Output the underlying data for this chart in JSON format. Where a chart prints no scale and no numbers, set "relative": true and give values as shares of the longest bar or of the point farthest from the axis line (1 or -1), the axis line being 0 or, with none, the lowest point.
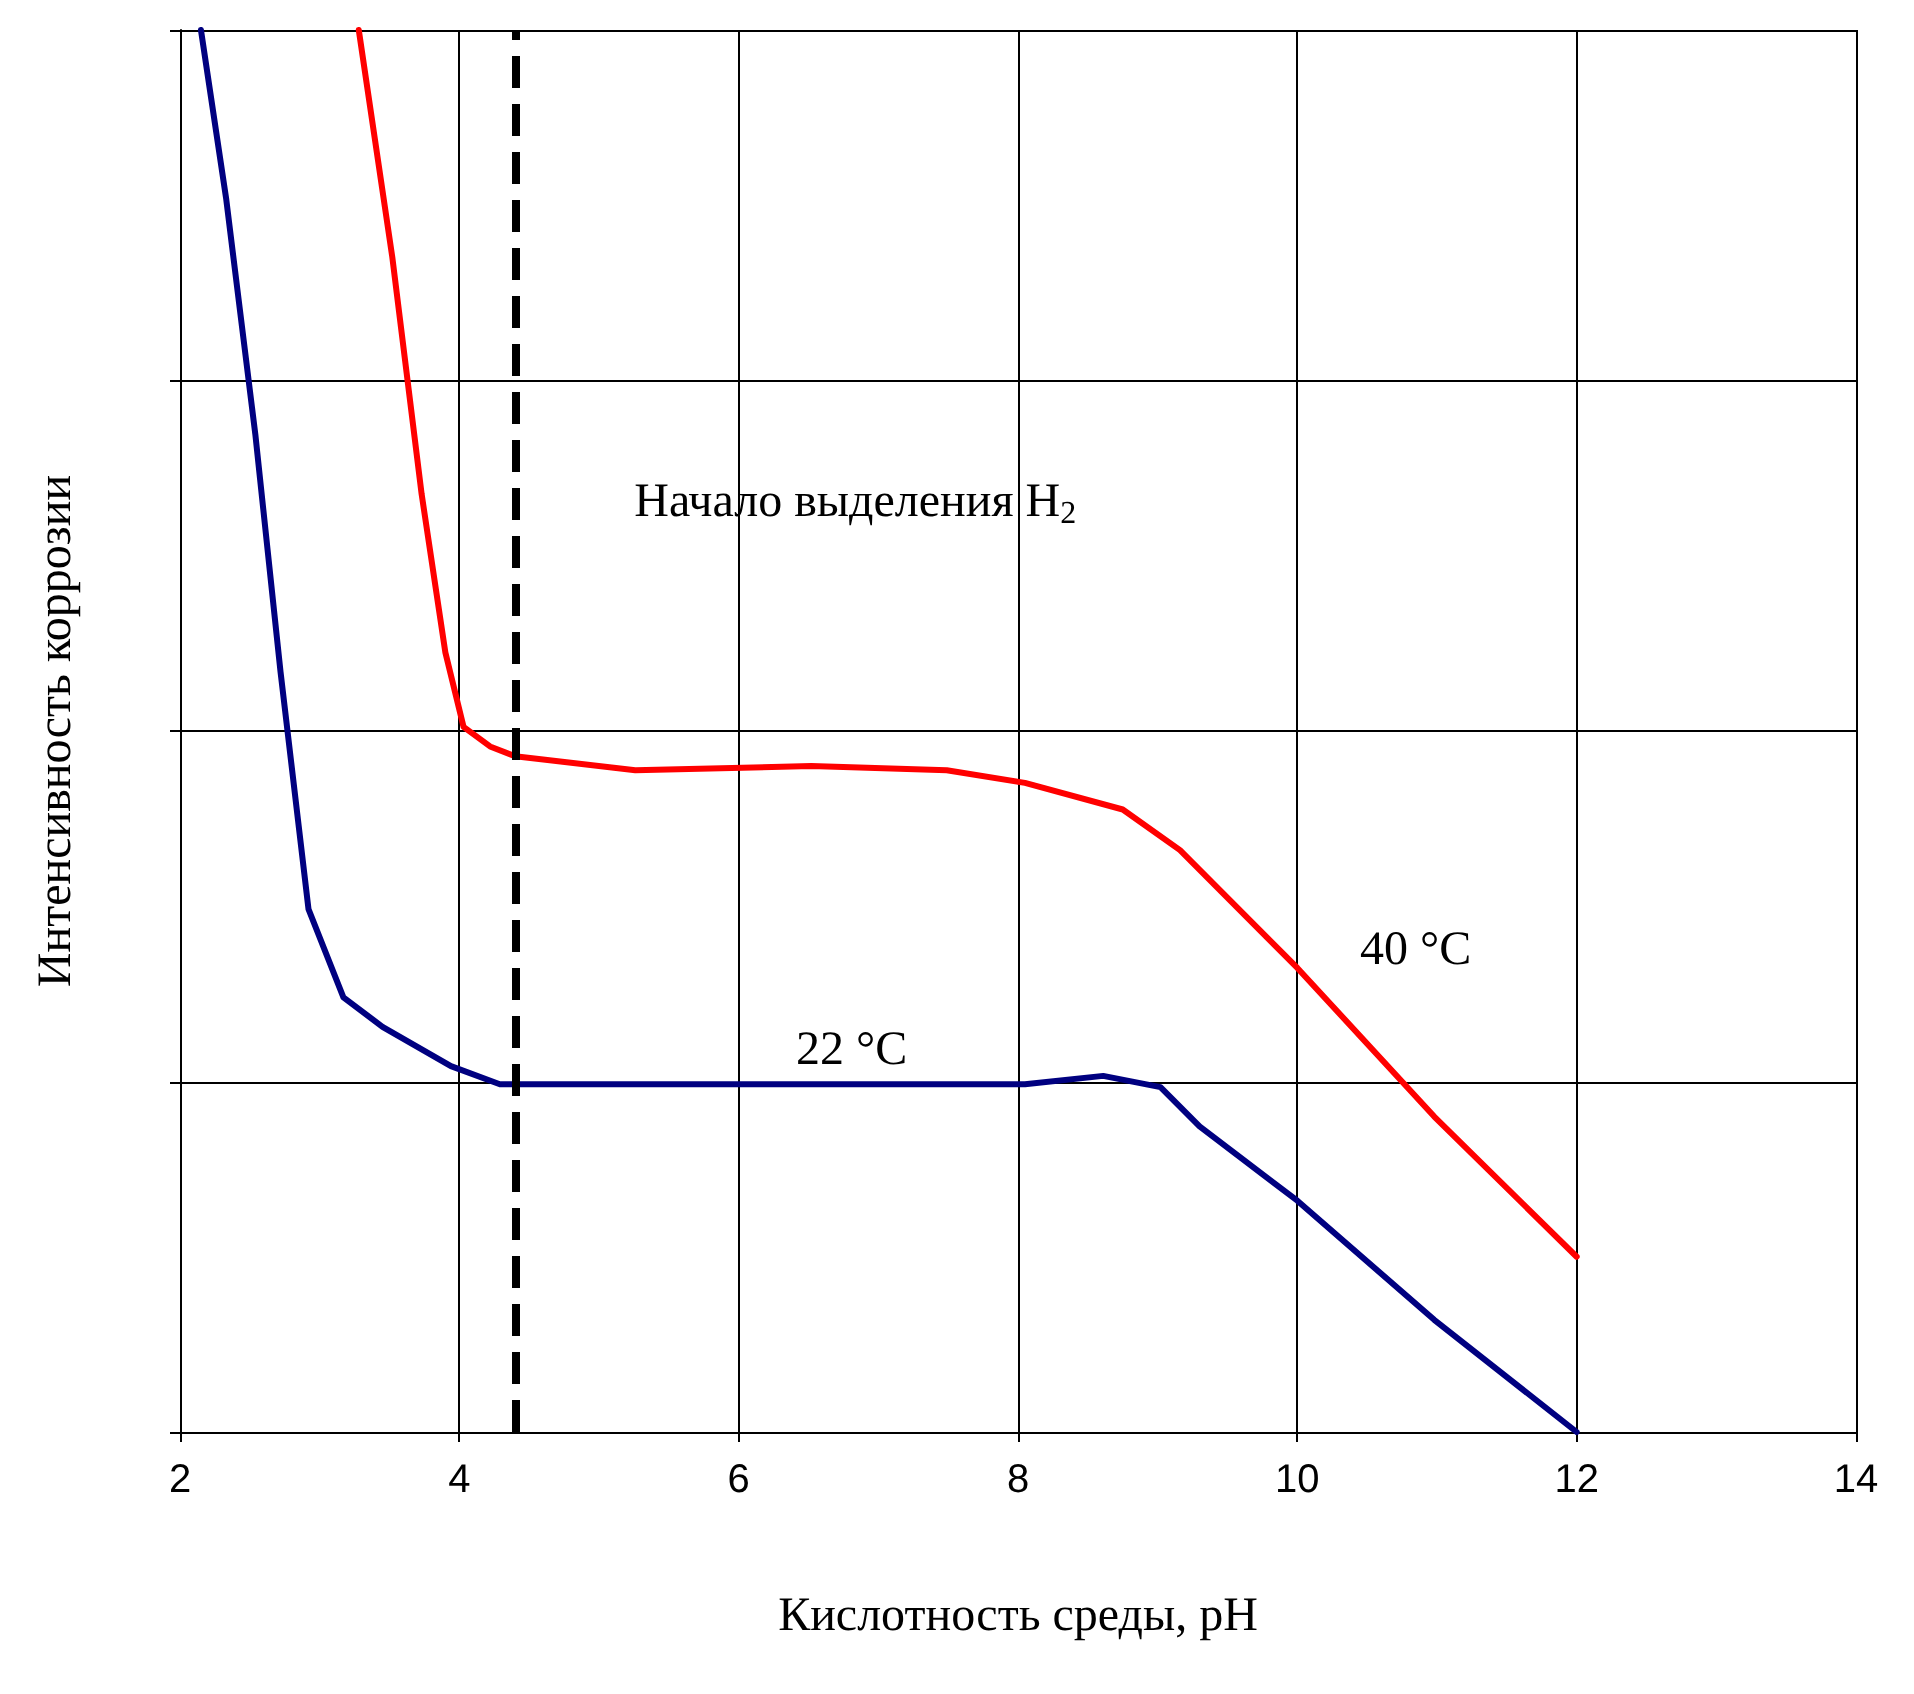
{
  "chart_data": {
    "type": "line",
    "relative": true,
    "xlabel": "Кислотность среды, pH",
    "ylabel": "Интенсивность коррозии",
    "xlim": [
      2,
      14
    ],
    "xticks": [
      2,
      4,
      6,
      8,
      10,
      12,
      14
    ],
    "grid": true,
    "marker": "none",
    "line_style": "solid",
    "series": [
      {
        "color": "#ff0000",
        "x": [
          3.28,
          3.52,
          3.73,
          3.9,
          4.03,
          4.22,
          4.4,
          5.26,
          6.52,
          7.49,
          8.05,
          8.75,
          9.16,
          10.0,
          10.98,
          12.0
        ],
        "values": [
          1.0,
          0.838,
          0.669,
          0.556,
          0.503,
          0.489,
          0.482,
          0.472,
          0.475,
          0.472,
          0.463,
          0.444,
          0.415,
          0.331,
          0.225,
          0.125
        ]
      },
      {
        "color": "#000080",
        "x": [
          2.15,
          2.33,
          2.54,
          2.72,
          2.92,
          3.17,
          3.45,
          3.94,
          4.29,
          5.12,
          8.05,
          8.61,
          9.02,
          9.3,
          10.0,
          10.98,
          12.0
        ],
        "values": [
          1.0,
          0.88,
          0.711,
          0.542,
          0.373,
          0.31,
          0.289,
          0.261,
          0.248,
          0.248,
          0.248,
          0.254,
          0.246,
          0.218,
          0.165,
          0.08,
          0.0
        ]
      }
    ],
    "ref_lines": [
      {
        "axis": "x",
        "value": 4.4,
        "label": "Начало выделения H$_{2}$",
        "color": "#000000",
        "line_style": "dashed"
      }
    ],
    "annotations": [
      "22 °C",
      "40 °C"
    ]
  }
}
